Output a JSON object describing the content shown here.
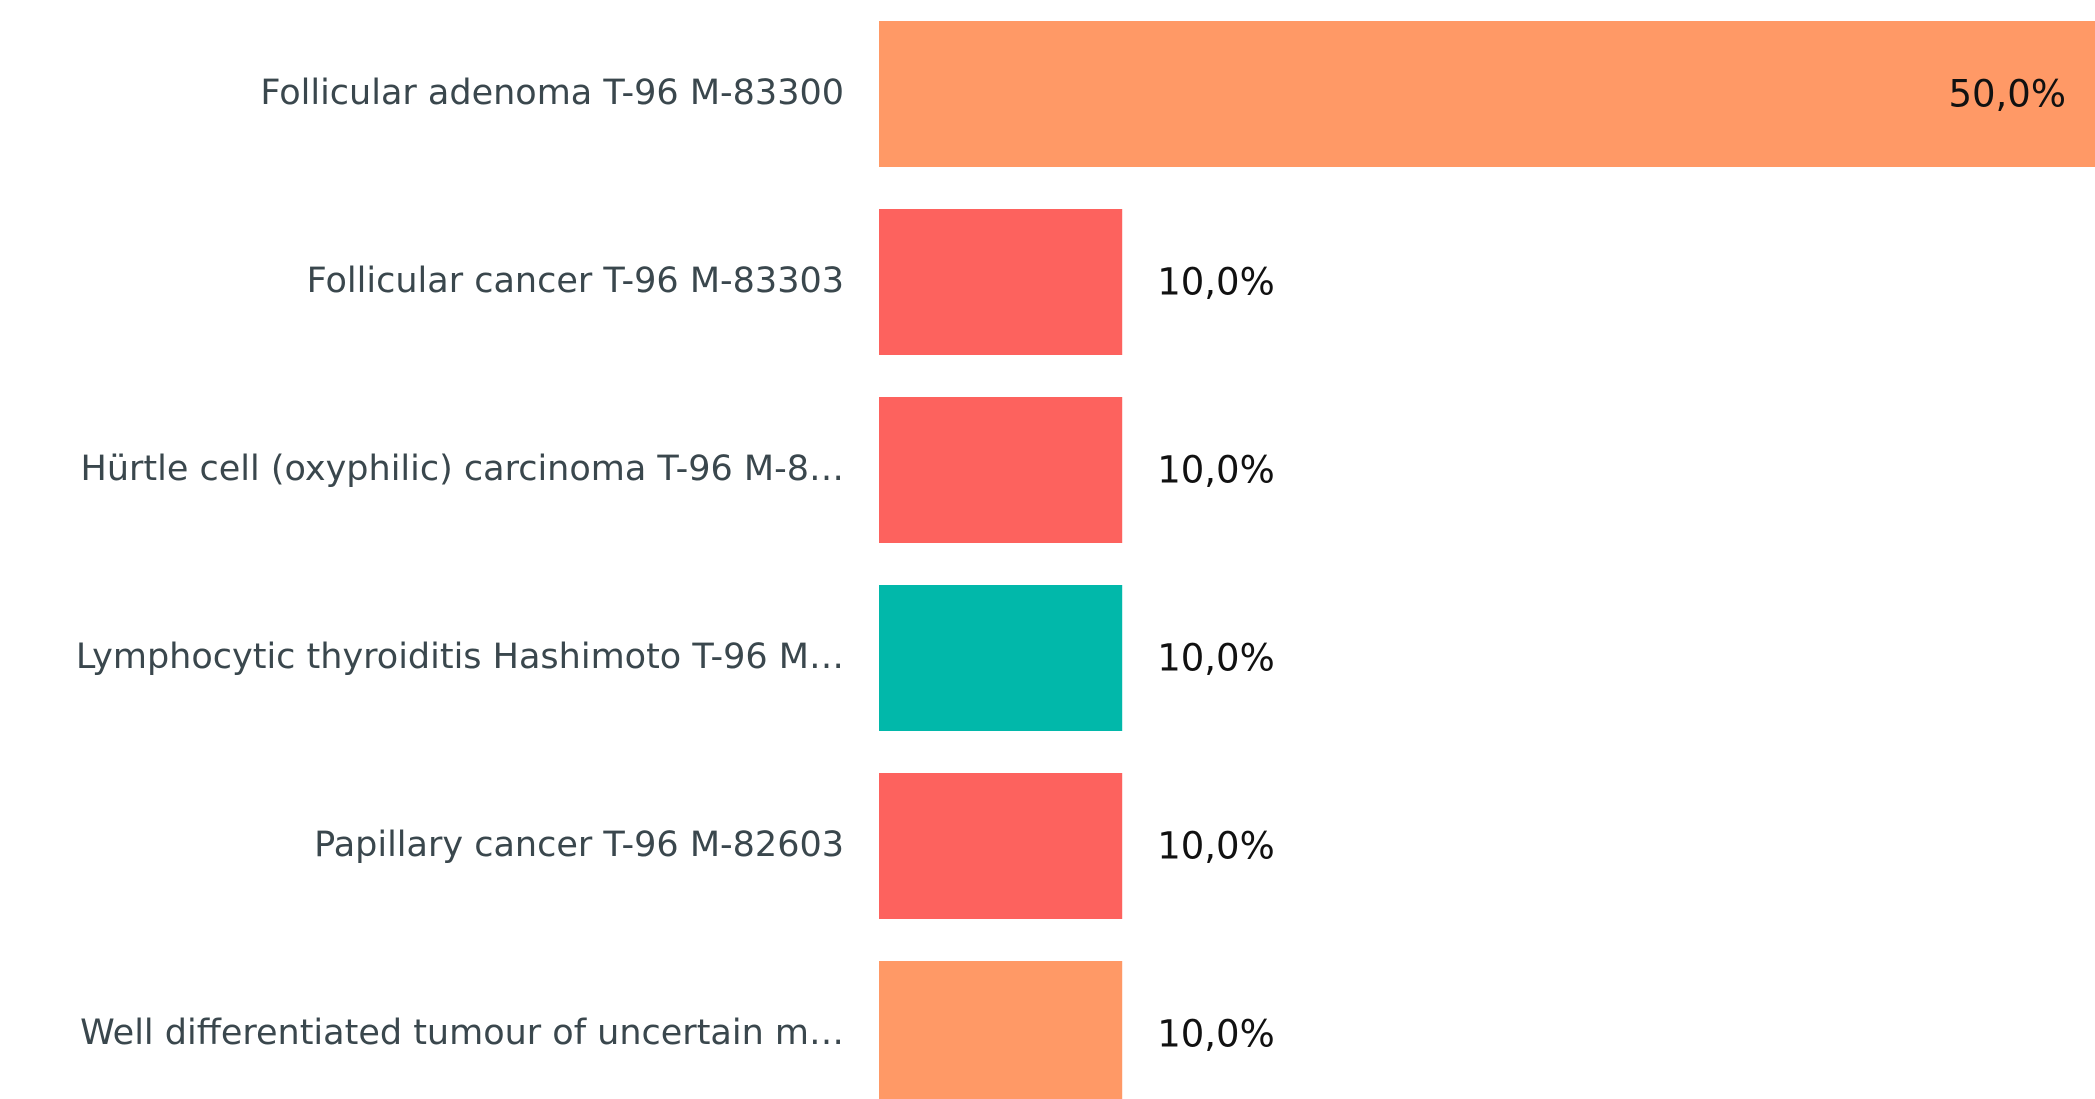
{
  "chart_data": {
    "type": "bar",
    "orientation": "horizontal",
    "categories": [
      "Follicular adenoma T-96 M-83300",
      "Follicular cancer T-96 M-83303",
      "Hürtle cell (oxyphilic) carcinoma T-96 M-8…",
      "Lymphocytic thyroiditis Hashimoto T-96 M…",
      "Papillary cancer T-96 M-82603",
      "Well differentiated tumour of uncertain m…"
    ],
    "values": [
      50,
      10,
      10,
      10,
      10,
      10
    ],
    "value_labels": [
      "50,0%",
      "10,0%",
      "10,0%",
      "10,0%",
      "10,0%",
      "10,0%"
    ],
    "colors": [
      "#FF9966",
      "#FD625E",
      "#FD625E",
      "#01B8AA",
      "#FD625E",
      "#FF9966"
    ],
    "xlim": [
      0,
      50
    ]
  }
}
